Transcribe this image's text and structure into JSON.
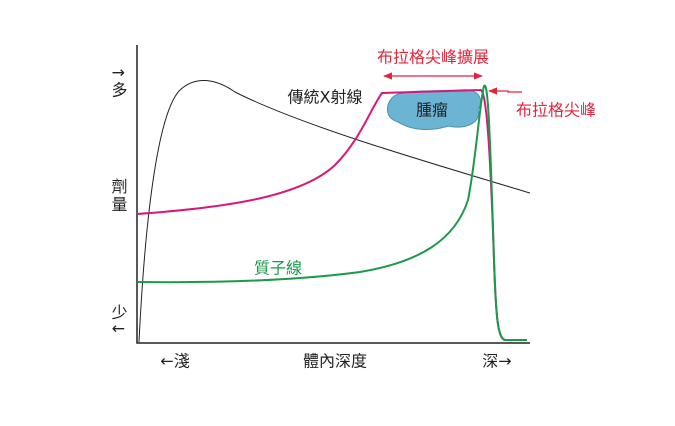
{
  "y_axis": {
    "high": "↑多",
    "label": "劑量",
    "low": "少↓"
  },
  "x_axis": {
    "shallow": "←淺",
    "label": "體內深度",
    "deep": "深→"
  },
  "curves": {
    "xray": "傳統X射線",
    "proton": "質子線"
  },
  "tumor": "腫瘤",
  "annotations": {
    "sobp": "布拉格尖峰擴展",
    "bragg_peak": "布拉格尖峰"
  }
}
